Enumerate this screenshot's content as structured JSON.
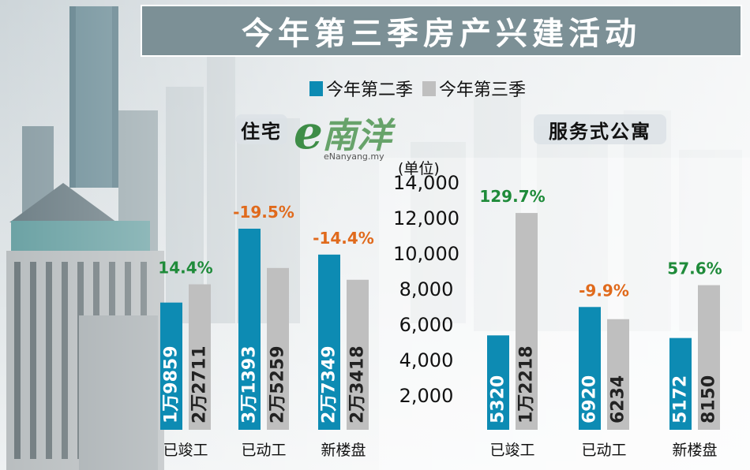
{
  "title": "今年第三季房产兴建活动",
  "legend": [
    {
      "label": "今年第二季",
      "color": "#0d8bb3"
    },
    {
      "label": "今年第三季",
      "color": "#bfbfbf"
    }
  ],
  "watermark": {
    "mark": "e",
    "name": "南洋",
    "site": "eNanyang.my"
  },
  "unit_label": "(单位)",
  "colors": {
    "q2": "#0d8bb3",
    "q3": "#bfbfbf",
    "positive": "#1f8b3a",
    "negative": "#e06a1c"
  },
  "chart_data": [
    {
      "type": "bar",
      "title": "住宅",
      "categories": [
        "已竣工",
        "已动工",
        "新楼盘"
      ],
      "series": [
        {
          "name": "今年第二季",
          "values": [
            19859,
            31393,
            27349
          ],
          "labels": [
            "1万9859",
            "3万1393",
            "2万7349"
          ]
        },
        {
          "name": "今年第三季",
          "values": [
            22711,
            25259,
            23418
          ],
          "labels": [
            "2万2711",
            "2万5259",
            "2万3418"
          ]
        }
      ],
      "changes": [
        "14.4%",
        "-19.5%",
        "-14.4%"
      ]
    },
    {
      "type": "bar",
      "title": "服务式公寓",
      "categories": [
        "已竣工",
        "已动工",
        "新楼盘"
      ],
      "series": [
        {
          "name": "今年第二季",
          "values": [
            5320,
            6920,
            5172
          ],
          "labels": [
            "5320",
            "6920",
            "5172"
          ]
        },
        {
          "name": "今年第三季",
          "values": [
            12218,
            6234,
            8150
          ],
          "labels": [
            "1万2218",
            "6234",
            "8150"
          ]
        }
      ],
      "changes": [
        "129.7%",
        "-9.9%",
        "57.6%"
      ],
      "yticks": [
        "14,000",
        "12,000",
        "10,000",
        "8,000",
        "6,000",
        "4,000",
        "2,000"
      ],
      "yvalues": [
        14000,
        12000,
        10000,
        8000,
        6000,
        4000,
        2000
      ]
    }
  ]
}
